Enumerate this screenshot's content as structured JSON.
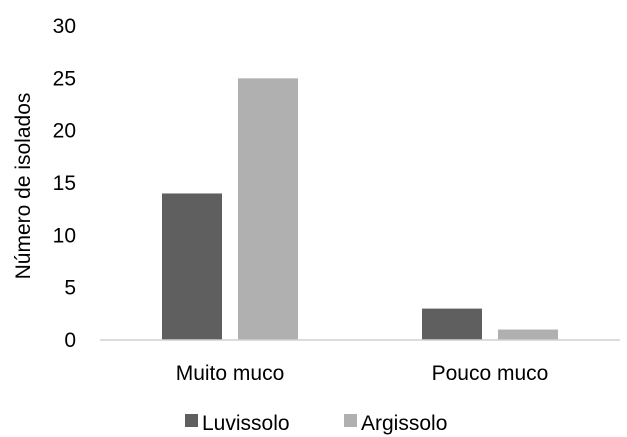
{
  "chart_data": {
    "type": "bar",
    "title": "",
    "xlabel": "",
    "ylabel": "Número de isolados",
    "ylim": [
      0,
      30
    ],
    "yticks": [
      0,
      5,
      10,
      15,
      20,
      25,
      30
    ],
    "grid": false,
    "legend_position": "bottom",
    "categories": [
      "Muito muco",
      "Pouco muco"
    ],
    "series": [
      {
        "name": "Luvissolo",
        "color": "#5f5f5f",
        "values": [
          14,
          3
        ]
      },
      {
        "name": "Argissolo",
        "color": "#b0b0b0",
        "values": [
          25,
          1
        ]
      }
    ]
  }
}
